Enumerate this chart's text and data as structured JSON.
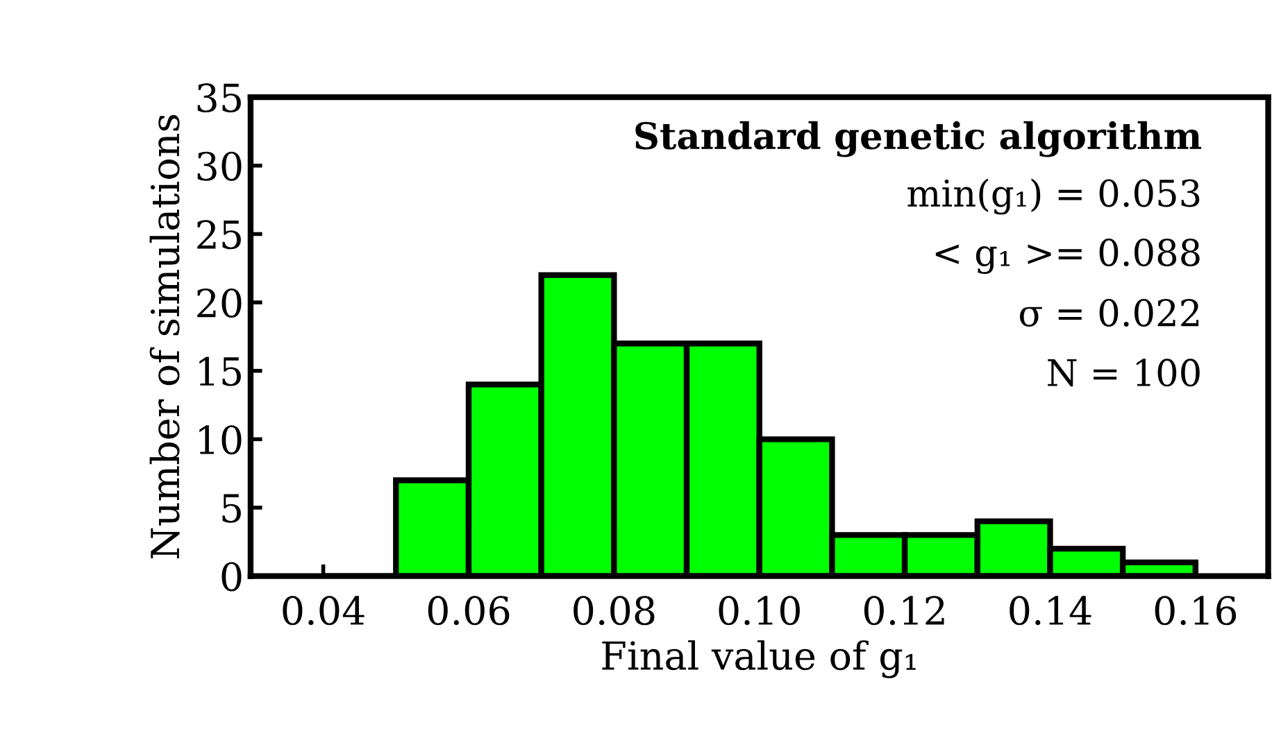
{
  "chart_data": {
    "type": "histogram",
    "title": "Standard genetic algorithm",
    "bins": [
      0.04,
      0.05,
      0.06,
      0.07,
      0.08,
      0.09,
      0.1,
      0.11,
      0.12,
      0.13,
      0.14,
      0.15,
      0.16
    ],
    "values": [
      0,
      7,
      14,
      22,
      17,
      17,
      10,
      3,
      3,
      4,
      2,
      1
    ],
    "color": "#00ff00",
    "xlabel": "Final value of g₁",
    "ylabel": "Number of simulations",
    "xlim": [
      0.03,
      0.17
    ],
    "xticks": [
      {
        "value": 0.04,
        "label": "0.04"
      },
      {
        "value": 0.06,
        "label": "0.06"
      },
      {
        "value": 0.08,
        "label": "0.08"
      },
      {
        "value": 0.1,
        "label": "0.10"
      },
      {
        "value": 0.12,
        "label": "0.12"
      },
      {
        "value": 0.14,
        "label": "0.14"
      },
      {
        "value": 0.16,
        "label": "0.16"
      }
    ],
    "ylim": [
      0,
      35
    ],
    "yticks": [
      0,
      5,
      10,
      15,
      20,
      25,
      30,
      35
    ],
    "annotations": [
      "min(g₁) = 0.053",
      "< g₁ >= 0.088",
      "σ = 0.022",
      "N = 100"
    ],
    "grid": false
  }
}
